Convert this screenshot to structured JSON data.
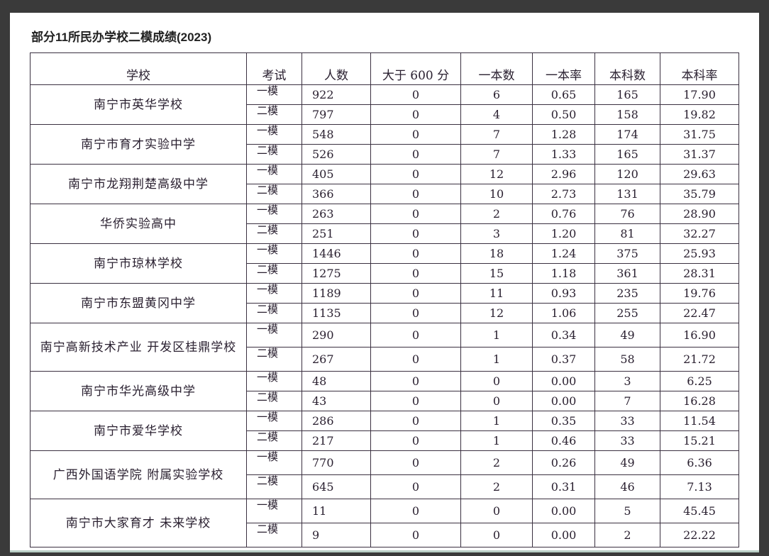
{
  "title": "部分11所民办学校二模成绩(2023)",
  "headers": [
    "学校",
    "考试",
    "人数",
    "大于 600 分",
    "一本数",
    "一本率",
    "本科数",
    "本科率"
  ],
  "schools": [
    {
      "name": "南宁市英华学校",
      "rows": [
        [
          "一模",
          "922",
          "0",
          "6",
          "0.65",
          "165",
          "17.90"
        ],
        [
          "二模",
          "797",
          "0",
          "4",
          "0.50",
          "158",
          "19.82"
        ]
      ]
    },
    {
      "name": "南宁市育才实验中学",
      "rows": [
        [
          "一模",
          "548",
          "0",
          "7",
          "1.28",
          "174",
          "31.75"
        ],
        [
          "二模",
          "526",
          "0",
          "7",
          "1.33",
          "165",
          "31.37"
        ]
      ]
    },
    {
      "name": "南宁市龙翔荆楚高级中学",
      "rows": [
        [
          "一模",
          "405",
          "0",
          "12",
          "2.96",
          "120",
          "29.63"
        ],
        [
          "二模",
          "366",
          "0",
          "10",
          "2.73",
          "131",
          "35.79"
        ]
      ]
    },
    {
      "name": "华侨实验高中",
      "rows": [
        [
          "一模",
          "263",
          "0",
          "2",
          "0.76",
          "76",
          "28.90"
        ],
        [
          "二模",
          "251",
          "0",
          "3",
          "1.20",
          "81",
          "32.27"
        ]
      ]
    },
    {
      "name": "南宁市琼林学校",
      "rows": [
        [
          "一模",
          "1446",
          "0",
          "18",
          "1.24",
          "375",
          "25.93"
        ],
        [
          "二模",
          "1275",
          "0",
          "15",
          "1.18",
          "361",
          "28.31"
        ]
      ]
    },
    {
      "name": "南宁市东盟黄冈中学",
      "rows": [
        [
          "一模",
          "1189",
          "0",
          "11",
          "0.93",
          "235",
          "19.76"
        ],
        [
          "二模",
          "1135",
          "0",
          "12",
          "1.06",
          "255",
          "22.47"
        ]
      ]
    },
    {
      "name": "南宁高新技术产业 开发区桂鼎学校",
      "tall": true,
      "rows": [
        [
          "一模",
          "290",
          "0",
          "1",
          "0.34",
          "49",
          "16.90"
        ],
        [
          "二模",
          "267",
          "0",
          "1",
          "0.37",
          "58",
          "21.72"
        ]
      ]
    },
    {
      "name": "南宁市华光高级中学",
      "rows": [
        [
          "一模",
          "48",
          "0",
          "0",
          "0.00",
          "3",
          "6.25"
        ],
        [
          "二模",
          "43",
          "0",
          "0",
          "0.00",
          "7",
          "16.28"
        ]
      ]
    },
    {
      "name": "南宁市爱华学校",
      "rows": [
        [
          "一模",
          "286",
          "0",
          "1",
          "0.35",
          "33",
          "11.54"
        ],
        [
          "二模",
          "217",
          "0",
          "1",
          "0.46",
          "33",
          "15.21"
        ]
      ]
    },
    {
      "name": "广西外国语学院 附属实验学校",
      "tall": true,
      "rows": [
        [
          "一模",
          "770",
          "0",
          "2",
          "0.26",
          "49",
          "6.36"
        ],
        [
          "二模",
          "645",
          "0",
          "2",
          "0.31",
          "46",
          "7.13"
        ]
      ]
    },
    {
      "name": "南宁市大家育才 未来学校",
      "tall": true,
      "rows": [
        [
          "一模",
          "11",
          "0",
          "0",
          "0.00",
          "5",
          "45.45"
        ],
        [
          "二模",
          "9",
          "0",
          "0",
          "0.00",
          "2",
          "22.22"
        ]
      ]
    }
  ]
}
